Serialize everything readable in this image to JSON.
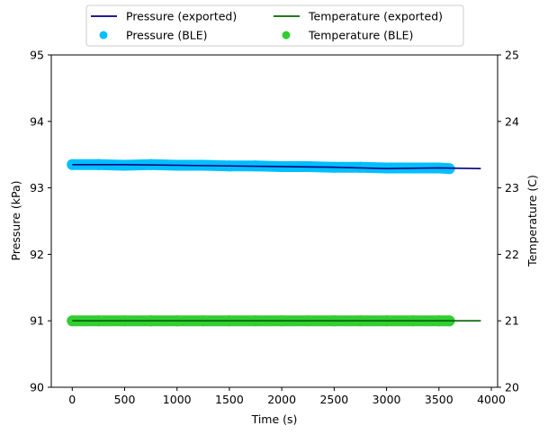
{
  "chart_data": {
    "type": "line",
    "xlabel": "Time (s)",
    "ylabel": "Pressure (kPa)",
    "y2label": "Temperature (C)",
    "xlim": [
      -200,
      4060
    ],
    "ylim": [
      90,
      95
    ],
    "y2lim": [
      20,
      25
    ],
    "x_ticks": [
      0,
      500,
      1000,
      1500,
      2000,
      2500,
      3000,
      3500,
      4000
    ],
    "y_ticks": [
      90,
      91,
      92,
      93,
      94,
      95
    ],
    "y2_ticks": [
      20,
      21,
      22,
      23,
      24,
      25
    ],
    "grid": false,
    "legend_placement": "top-center",
    "series": [
      {
        "name": "Pressure (exported)",
        "kind": "line",
        "axis": "left",
        "color": "#00007f",
        "x": [
          0,
          500,
          1000,
          1500,
          2000,
          2500,
          3000,
          3500,
          3900
        ],
        "y": [
          93.35,
          93.35,
          93.34,
          93.33,
          93.32,
          93.31,
          93.29,
          93.3,
          93.29
        ]
      },
      {
        "name": "Temperature (exported)",
        "kind": "line",
        "axis": "right",
        "color": "#006400",
        "x": [
          0,
          3900
        ],
        "y": [
          21.0,
          21.0
        ]
      },
      {
        "name": "Pressure (BLE)",
        "kind": "scatter",
        "axis": "left",
        "color": "#00bfff",
        "x": [
          0,
          250,
          500,
          750,
          1000,
          1250,
          1500,
          1750,
          2000,
          2250,
          2500,
          2750,
          3000,
          3250,
          3500,
          3600
        ],
        "y": [
          93.35,
          93.35,
          93.34,
          93.35,
          93.34,
          93.34,
          93.33,
          93.33,
          93.32,
          93.32,
          93.31,
          93.31,
          93.3,
          93.3,
          93.3,
          93.29
        ]
      },
      {
        "name": "Temperature (BLE)",
        "kind": "scatter",
        "axis": "right",
        "color": "#32cd32",
        "x": [
          0,
          250,
          500,
          750,
          1000,
          1250,
          1500,
          1750,
          2000,
          2250,
          2500,
          2750,
          3000,
          3250,
          3500,
          3600
        ],
        "y": [
          21.0,
          21.0,
          21.0,
          21.0,
          21.0,
          21.0,
          21.0,
          21.0,
          21.0,
          21.0,
          21.0,
          21.0,
          21.0,
          21.0,
          21.0,
          21.0
        ]
      }
    ]
  }
}
